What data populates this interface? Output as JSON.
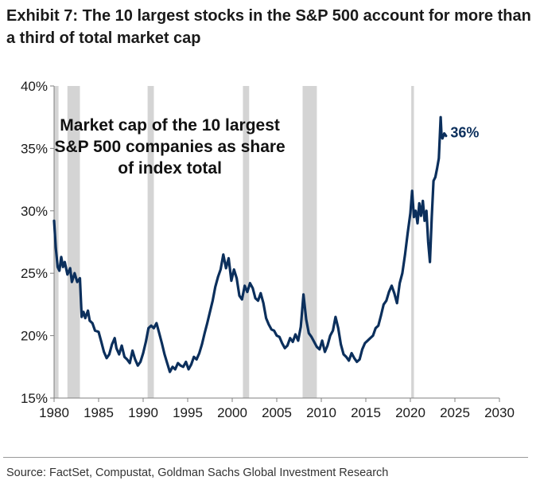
{
  "header": {
    "title": "Exhibit 7: The 10 largest stocks in the S&P 500 account for more than a third of total market cap"
  },
  "footer": {
    "source": "Source: FactSet, Compustat, Goldman Sachs Global Investment Research"
  },
  "chart_data": {
    "type": "line",
    "inset_label": [
      "Market cap of the 10 largest",
      "S&P 500 companies as share",
      "of index total"
    ],
    "end_label": "36%",
    "xlim": [
      1980,
      2030
    ],
    "ylim": [
      15,
      40
    ],
    "x_ticks": [
      1980,
      1985,
      1990,
      1995,
      2000,
      2005,
      2010,
      2015,
      2020,
      2025,
      2030
    ],
    "x_tick_labels": [
      "1980",
      "1985",
      "1990",
      "1995",
      "2000",
      "2005",
      "2010",
      "2015",
      "2020",
      "2025",
      "2030"
    ],
    "y_ticks": [
      15,
      20,
      25,
      30,
      35,
      40
    ],
    "y_tick_labels": [
      "15%",
      "20%",
      "25%",
      "30%",
      "35%",
      "40%"
    ],
    "grid": false,
    "recessions": [
      [
        1980.0,
        1980.5
      ],
      [
        1981.5,
        1982.9
      ],
      [
        1990.5,
        1991.2
      ],
      [
        2001.2,
        2001.9
      ],
      [
        2007.9,
        2009.5
      ],
      [
        2020.1,
        2020.4
      ]
    ],
    "colors": {
      "line": "#0b2f5c",
      "recession": "#d4d4d4",
      "axis": "#808080",
      "label": "#0b2f5c"
    },
    "series": [
      {
        "x": [
          1980.0,
          1980.2,
          1980.4,
          1980.6,
          1980.8,
          1981.0,
          1981.2,
          1981.5,
          1981.8,
          1982.0,
          1982.3,
          1982.6,
          1982.9,
          1983.1,
          1983.3,
          1983.5,
          1983.8,
          1984.0,
          1984.3,
          1984.6,
          1985.0,
          1985.3,
          1985.6,
          1985.9,
          1986.2,
          1986.5,
          1986.8,
          1987.0,
          1987.3,
          1987.6,
          1987.9,
          1988.2,
          1988.5,
          1988.8,
          1989.1,
          1989.4,
          1989.7,
          1990.0,
          1990.3,
          1990.6,
          1990.9,
          1991.2,
          1991.5,
          1991.8,
          1992.1,
          1992.4,
          1992.7,
          1993.0,
          1993.3,
          1993.6,
          1993.9,
          1994.2,
          1994.5,
          1994.8,
          1995.1,
          1995.4,
          1995.7,
          1996.0,
          1996.3,
          1996.6,
          1996.9,
          1997.2,
          1997.5,
          1997.8,
          1998.1,
          1998.4,
          1998.7,
          1999.0,
          1999.3,
          1999.6,
          1999.9,
          2000.2,
          2000.5,
          2000.8,
          2001.1,
          2001.4,
          2001.7,
          2002.0,
          2002.3,
          2002.6,
          2002.9,
          2003.2,
          2003.5,
          2003.8,
          2004.1,
          2004.4,
          2004.7,
          2005.0,
          2005.3,
          2005.6,
          2005.9,
          2006.2,
          2006.5,
          2006.8,
          2007.1,
          2007.4,
          2007.7,
          2008.0,
          2008.3,
          2008.6,
          2008.9,
          2009.2,
          2009.5,
          2009.8,
          2010.1,
          2010.4,
          2010.7,
          2011.0,
          2011.3,
          2011.6,
          2011.9,
          2012.2,
          2012.5,
          2012.8,
          2013.1,
          2013.4,
          2013.7,
          2014.0,
          2014.3,
          2014.6,
          2014.9,
          2015.2,
          2015.5,
          2015.8,
          2016.1,
          2016.4,
          2016.7,
          2017.0,
          2017.3,
          2017.6,
          2017.9,
          2018.2,
          2018.5,
          2018.8,
          2019.1,
          2019.4,
          2019.7,
          2020.0,
          2020.2,
          2020.4,
          2020.6,
          2020.8,
          2021.0,
          2021.2,
          2021.4,
          2021.6,
          2021.8,
          2022.0,
          2022.2,
          2022.4,
          2022.6,
          2022.8,
          2023.0,
          2023.2,
          2023.4,
          2023.5,
          2023.6,
          2023.8,
          2024.0
        ],
        "values": [
          29.2,
          27.0,
          25.5,
          25.2,
          26.3,
          25.5,
          25.9,
          24.9,
          25.4,
          24.3,
          25.0,
          24.3,
          24.6,
          21.5,
          21.9,
          21.4,
          22.0,
          21.2,
          21.0,
          20.4,
          20.3,
          19.5,
          18.7,
          18.2,
          18.5,
          19.3,
          19.8,
          19.0,
          18.5,
          19.2,
          18.3,
          18.1,
          17.8,
          18.8,
          18.1,
          17.6,
          17.9,
          18.6,
          19.5,
          20.6,
          20.8,
          20.6,
          21.0,
          20.2,
          19.4,
          18.5,
          17.8,
          17.1,
          17.5,
          17.3,
          17.8,
          17.6,
          17.5,
          17.9,
          17.3,
          17.7,
          18.3,
          18.1,
          18.6,
          19.3,
          20.2,
          21.0,
          21.9,
          22.8,
          23.9,
          24.7,
          25.3,
          26.5,
          25.4,
          26.2,
          24.4,
          25.3,
          24.6,
          23.2,
          22.9,
          24.0,
          23.5,
          24.2,
          23.8,
          23.0,
          22.8,
          23.4,
          22.6,
          21.4,
          20.9,
          20.5,
          20.4,
          20.0,
          19.9,
          19.4,
          19.0,
          19.2,
          19.8,
          19.5,
          20.1,
          19.6,
          20.7,
          23.3,
          21.3,
          20.2,
          19.9,
          19.5,
          19.1,
          18.9,
          19.6,
          18.7,
          19.2,
          20.0,
          20.4,
          21.5,
          20.6,
          19.3,
          18.5,
          18.3,
          18.0,
          18.6,
          18.2,
          17.9,
          18.1,
          18.9,
          19.4,
          19.6,
          19.8,
          20.0,
          20.6,
          20.8,
          21.6,
          22.5,
          22.8,
          23.5,
          24.0,
          23.4,
          22.6,
          24.2,
          25.0,
          26.5,
          28.2,
          29.8,
          31.6,
          29.5,
          30.0,
          29.0,
          30.6,
          29.6,
          30.8,
          29.2,
          30.0,
          27.5,
          25.9,
          29.5,
          32.4,
          32.7,
          33.4,
          34.2,
          37.5,
          36.0,
          35.8,
          36.2,
          36.0
        ]
      }
    ]
  }
}
